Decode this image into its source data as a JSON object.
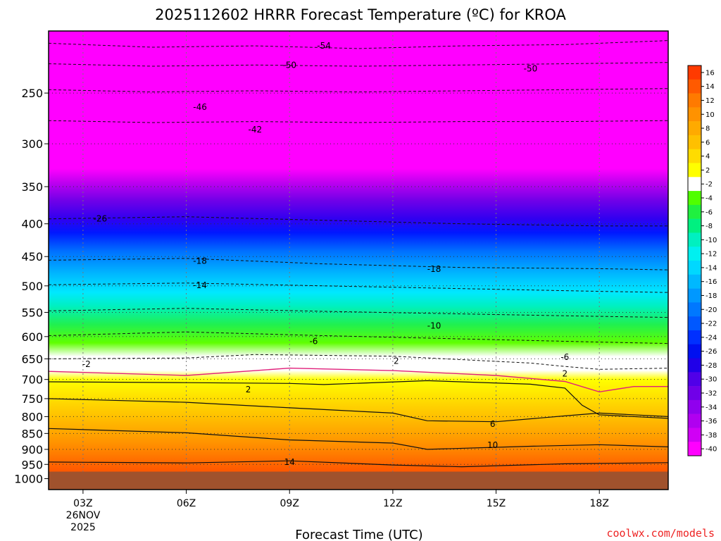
{
  "chart_data": {
    "type": "heatmap",
    "title": "2025112602 HRRR Forecast Temperature (ºC) for KROA",
    "xlabel": "Forecast Time (UTC)",
    "credit": "coolwx.com/models",
    "x_ticks": [
      "03Z",
      "06Z",
      "09Z",
      "12Z",
      "15Z",
      "18Z"
    ],
    "x_date_line1": "26NOV",
    "x_date_line2": "2025",
    "x_range_hours": [
      2,
      20
    ],
    "y_ticks": [
      "250",
      "300",
      "350",
      "400",
      "450",
      "500",
      "550",
      "600",
      "650",
      "700",
      "750",
      "800",
      "850",
      "900",
      "950",
      "1000"
    ],
    "y_range_hPa": [
      200,
      1040
    ],
    "y_scale": "log",
    "colorbar_ticks": [
      "16",
      "14",
      "12",
      "10",
      "8",
      "6",
      "4",
      "2",
      "-2",
      "-4",
      "-6",
      "-8",
      "-10",
      "-12",
      "-14",
      "-16",
      "-18",
      "-20",
      "-22",
      "-24",
      "-26",
      "-28",
      "-30",
      "-32",
      "-34",
      "-36",
      "-38",
      "-40"
    ],
    "colorbar_colors": [
      "#ff3a00",
      "#ff5a00",
      "#ff7a00",
      "#ff9200",
      "#ffaa00",
      "#ffc000",
      "#ffdc00",
      "#ffff00",
      "#ffffff",
      "#50ff00",
      "#20f040",
      "#00f080",
      "#00f0c0",
      "#00f0f0",
      "#00d8ff",
      "#00b8ff",
      "#0098ff",
      "#0078ff",
      "#0058ff",
      "#0030ff",
      "#0010f0",
      "#2000e8",
      "#5000e8",
      "#7000e8",
      "#9000ee",
      "#b000f0",
      "#d000f5",
      "#ff00ff"
    ],
    "dashed_contours": [
      {
        "label": "-54",
        "points": [
          [
            2,
            209
          ],
          [
            5,
            212
          ],
          [
            8,
            211
          ],
          [
            11,
            213
          ],
          [
            14,
            211
          ],
          [
            17,
            210
          ],
          [
            20,
            207
          ]
        ]
      },
      {
        "label": "-50",
        "points": [
          [
            2,
            225
          ],
          [
            5,
            227
          ],
          [
            8,
            226
          ],
          [
            11,
            227
          ],
          [
            14,
            226
          ],
          [
            17,
            225
          ],
          [
            20,
            224
          ]
        ]
      },
      {
        "label": "-46",
        "points": [
          [
            2,
            247
          ],
          [
            5,
            249
          ],
          [
            8,
            248
          ],
          [
            11,
            249
          ],
          [
            14,
            248
          ],
          [
            17,
            247
          ],
          [
            20,
            246
          ]
        ]
      },
      {
        "label": "-42",
        "points": [
          [
            2,
            276
          ],
          [
            5,
            278
          ],
          [
            8,
            277
          ],
          [
            11,
            278
          ],
          [
            14,
            277
          ],
          [
            17,
            277
          ],
          [
            20,
            276
          ]
        ]
      },
      {
        "label": "-26",
        "points": [
          [
            2,
            393
          ],
          [
            6,
            390
          ],
          [
            10,
            395
          ],
          [
            14,
            400
          ],
          [
            18,
            403
          ],
          [
            20,
            403
          ]
        ]
      },
      {
        "label": "-18",
        "points": [
          [
            2,
            456
          ],
          [
            6,
            453
          ],
          [
            10,
            462
          ],
          [
            14,
            468
          ],
          [
            18,
            470
          ],
          [
            20,
            472
          ]
        ]
      },
      {
        "label": "-14",
        "points": [
          [
            2,
            498
          ],
          [
            6,
            495
          ],
          [
            10,
            500
          ],
          [
            14,
            505
          ],
          [
            18,
            510
          ],
          [
            20,
            512
          ]
        ]
      },
      {
        "label": "-10",
        "points": [
          [
            2,
            547
          ],
          [
            6,
            542
          ],
          [
            10,
            548
          ],
          [
            14,
            553
          ],
          [
            18,
            558
          ],
          [
            20,
            560
          ]
        ]
      },
      {
        "label": "-6",
        "points": [
          [
            2,
            598
          ],
          [
            6,
            590
          ],
          [
            10,
            598
          ],
          [
            14,
            605
          ],
          [
            18,
            612
          ],
          [
            20,
            615
          ]
        ]
      },
      {
        "label": "-2",
        "points": [
          [
            2,
            650
          ],
          [
            6,
            648
          ],
          [
            8,
            640
          ],
          [
            12,
            644
          ],
          [
            16,
            660
          ],
          [
            17,
            668
          ],
          [
            18,
            675
          ],
          [
            20,
            672
          ]
        ]
      }
    ],
    "solid_contours": [
      {
        "label": "2",
        "points": [
          [
            2,
            706
          ],
          [
            6,
            708
          ],
          [
            9,
            710
          ],
          [
            10,
            713
          ],
          [
            13,
            703
          ],
          [
            16,
            712
          ],
          [
            17,
            722
          ],
          [
            17.5,
            768
          ],
          [
            18,
            795
          ],
          [
            20,
            805
          ]
        ]
      },
      {
        "label": "6",
        "points": [
          [
            2,
            750
          ],
          [
            6,
            760
          ],
          [
            9,
            775
          ],
          [
            12,
            790
          ],
          [
            13,
            812
          ],
          [
            15,
            815
          ],
          [
            17,
            798
          ],
          [
            18,
            790
          ],
          [
            20,
            800
          ]
        ]
      },
      {
        "label": "10",
        "points": [
          [
            2,
            835
          ],
          [
            6,
            848
          ],
          [
            9,
            870
          ],
          [
            12,
            880
          ],
          [
            13,
            900
          ],
          [
            16,
            890
          ],
          [
            18,
            885
          ],
          [
            20,
            892
          ]
        ]
      },
      {
        "label": "14",
        "points": [
          [
            2,
            942
          ],
          [
            6,
            945
          ],
          [
            9,
            938
          ],
          [
            12,
            952
          ],
          [
            14,
            958
          ],
          [
            17,
            948
          ],
          [
            20,
            944
          ]
        ]
      },
      {
        "label": "0",
        "points": [
          [
            2,
            680
          ],
          [
            6,
            690
          ],
          [
            9,
            672
          ],
          [
            12,
            678
          ],
          [
            15,
            690
          ],
          [
            17,
            705
          ],
          [
            18,
            732
          ],
          [
            19,
            718
          ],
          [
            20,
            718
          ]
        ]
      }
    ],
    "contour_labels": [
      {
        "text": "-54",
        "x": 10.0,
        "p": 211
      },
      {
        "text": "-50",
        "x": 9.0,
        "p": 226
      },
      {
        "text": "-50",
        "x": 16.0,
        "p": 229
      },
      {
        "text": "-46",
        "x": 6.4,
        "p": 263
      },
      {
        "text": "-42",
        "x": 8.0,
        "p": 285
      },
      {
        "text": "-26",
        "x": 3.5,
        "p": 393
      },
      {
        "text": "-18",
        "x": 6.4,
        "p": 457
      },
      {
        "text": "-18",
        "x": 13.2,
        "p": 471
      },
      {
        "text": "-14",
        "x": 6.4,
        "p": 499
      },
      {
        "text": "-10",
        "x": 13.2,
        "p": 577
      },
      {
        "text": "-6",
        "x": 9.7,
        "p": 610
      },
      {
        "text": "-6",
        "x": 17.0,
        "p": 646
      },
      {
        "text": "-2",
        "x": 3.1,
        "p": 663
      },
      {
        "text": "2",
        "x": 12.1,
        "p": 655
      },
      {
        "text": "2",
        "x": 17.0,
        "p": 686
      },
      {
        "text": "2",
        "x": 7.8,
        "p": 726
      },
      {
        "text": "6",
        "x": 14.9,
        "p": 822
      },
      {
        "text": "10",
        "x": 14.9,
        "p": 887
      },
      {
        "text": "14",
        "x": 9.0,
        "p": 942
      }
    ]
  }
}
